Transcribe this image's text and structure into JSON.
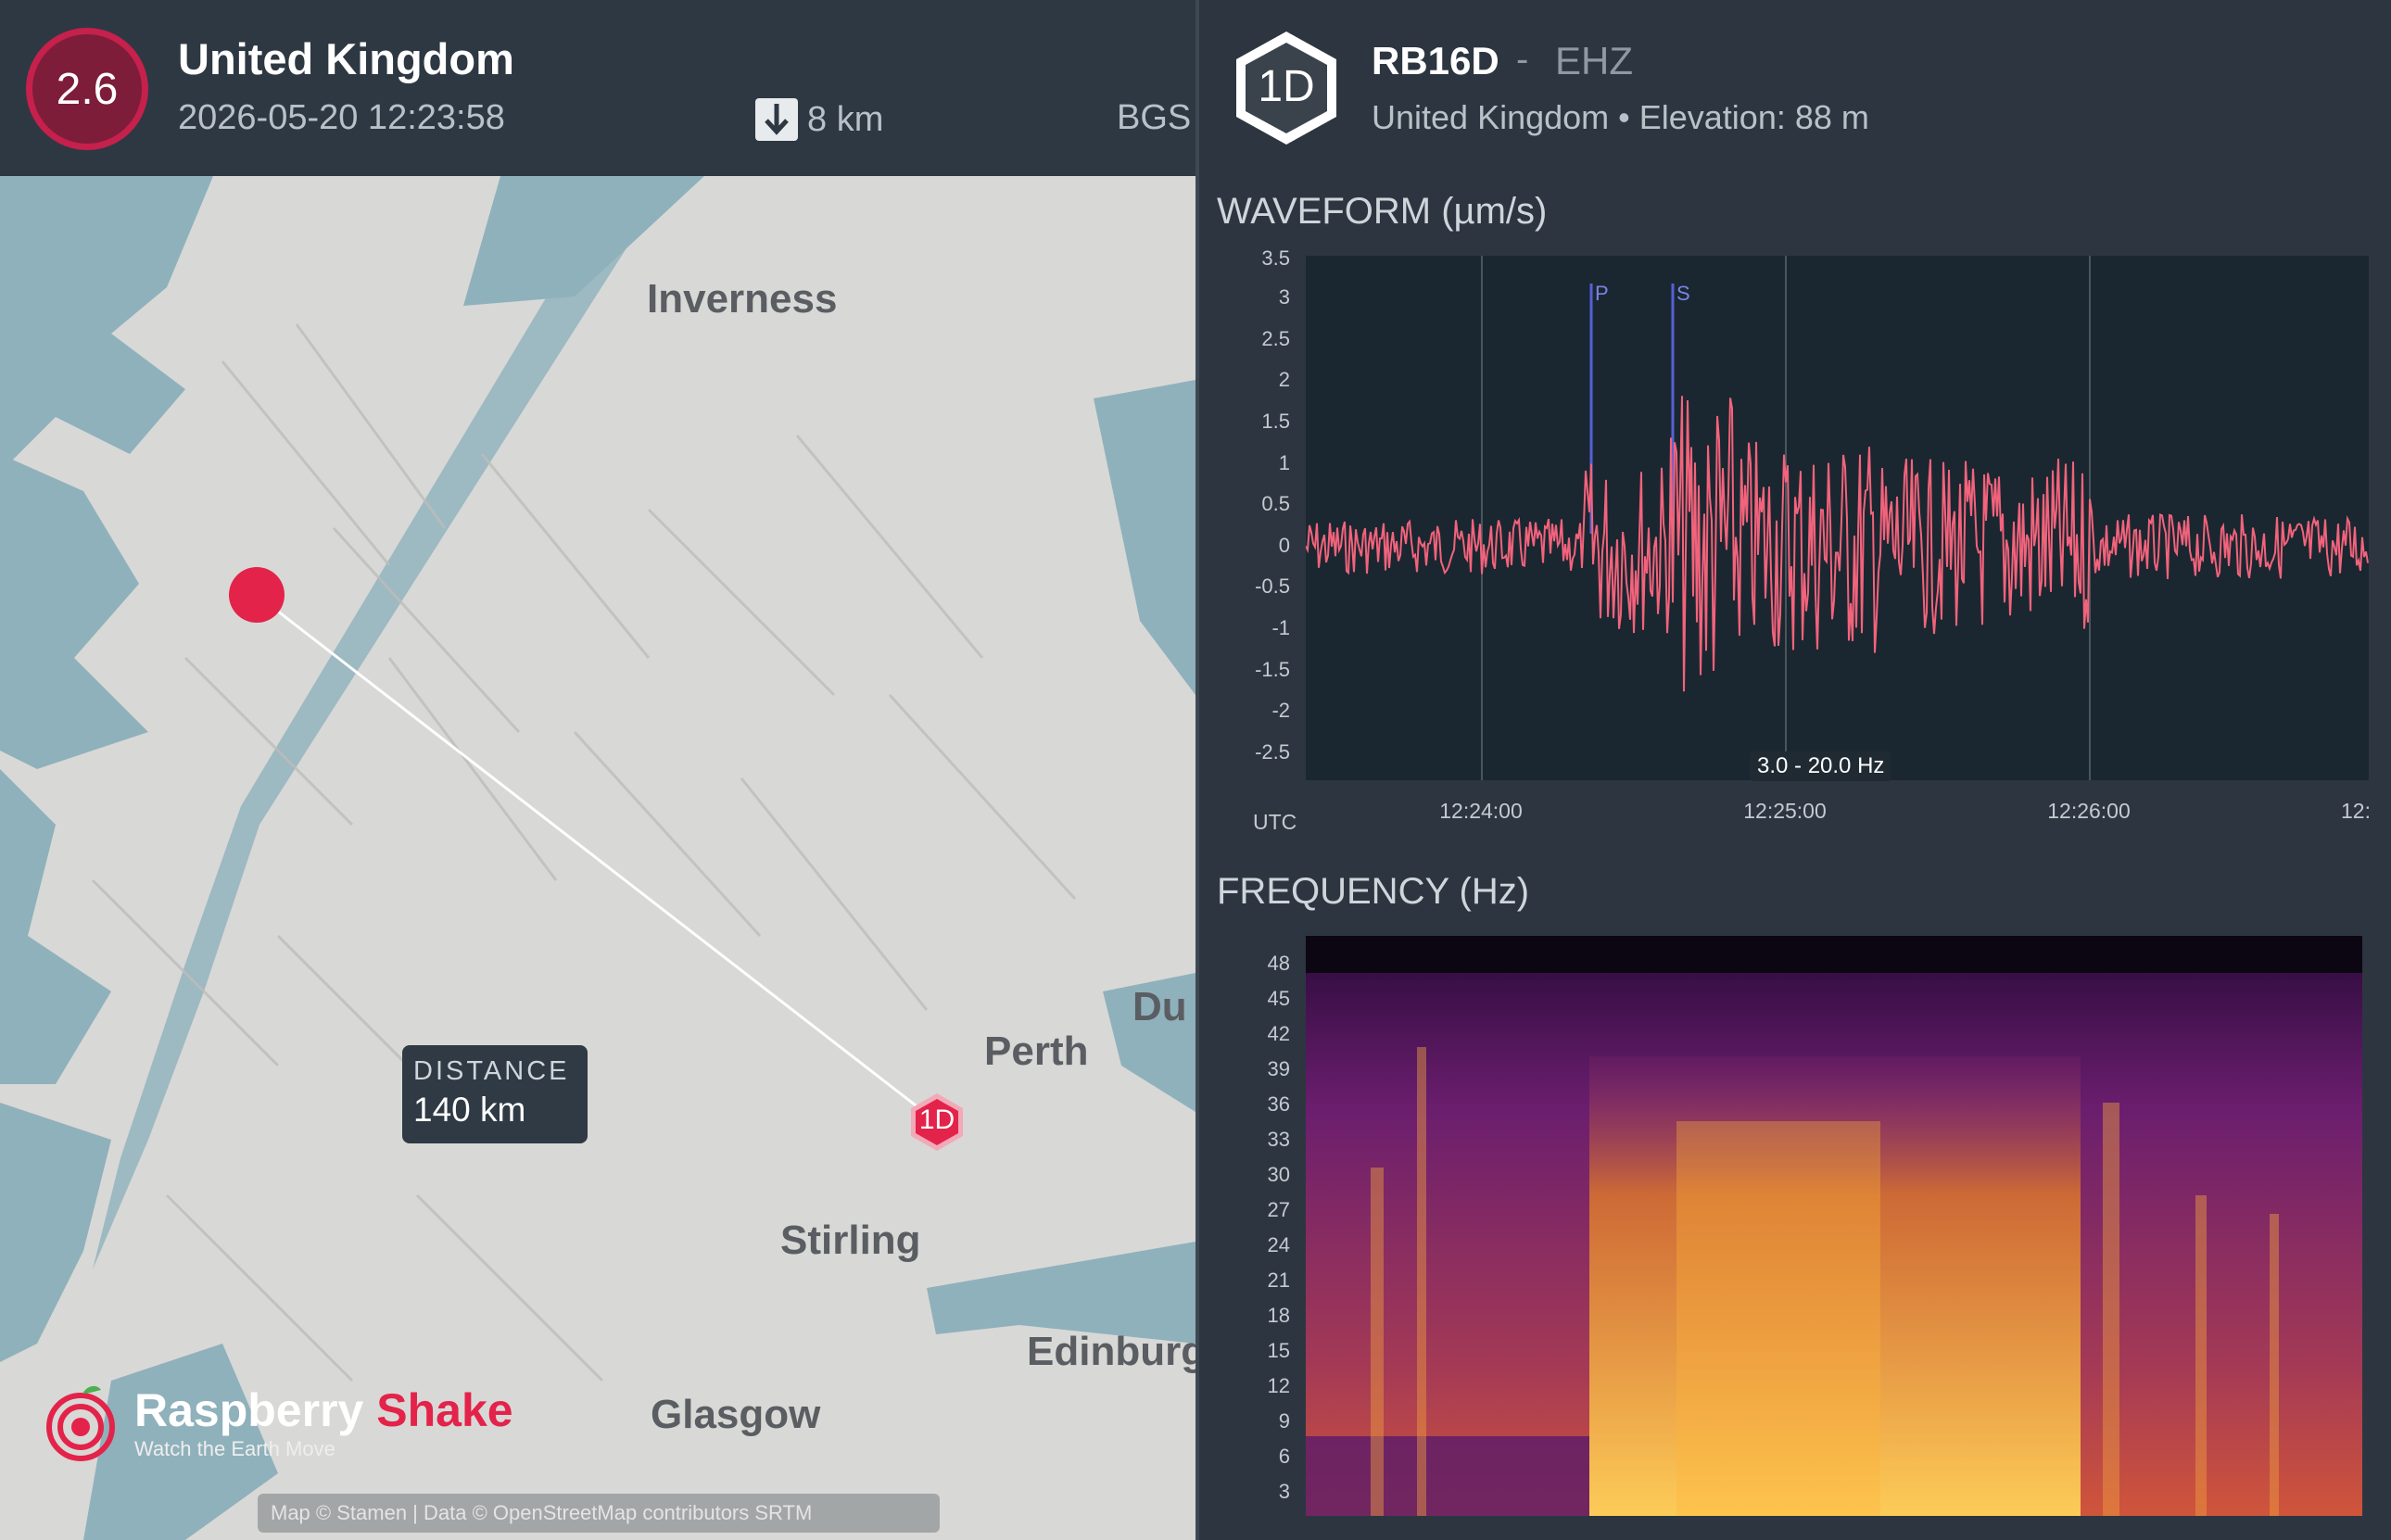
{
  "event": {
    "magnitude": "2.6",
    "region": "United Kingdom",
    "datetime": "2026-05-20 12:23:58",
    "depth": "8 km",
    "agency": "BGS"
  },
  "map": {
    "places": {
      "inverness": "Inverness",
      "perth": "Perth",
      "dundee_partial": "Du",
      "stirling": "Stirling",
      "edinburgh_partial": "Edinburg",
      "glasgow": "Glasgow"
    },
    "station_marker": "1D",
    "distance_label": "DISTANCE",
    "distance_value": "140 km",
    "brand_raspberry": "Raspberry",
    "brand_shake": "Shake",
    "brand_tagline": "Watch the Earth Move",
    "attribution": "Map © Stamen | Data © OpenStreetMap contributors SRTM"
  },
  "station": {
    "badge": "1D",
    "code": "RB16D",
    "separator": "-",
    "channel": "EHZ",
    "meta": "United Kingdom • Elevation: 88 m"
  },
  "waveform": {
    "title": "WAVEFORM (µm/s)",
    "utc_label": "UTC",
    "filter": "3.0 - 20.0 Hz",
    "y_ticks": [
      "3.5",
      "3",
      "2.5",
      "2",
      "1.5",
      "1",
      "0.5",
      "0",
      "-0.5",
      "-1",
      "-1.5",
      "-2",
      "-2.5"
    ],
    "x_ticks": [
      "12:24:00",
      "12:25:00",
      "12:26:00",
      "12:"
    ],
    "phase_p": "P",
    "phase_s": "S"
  },
  "frequency": {
    "title": "FREQUENCY (Hz)",
    "y_ticks": [
      "48",
      "45",
      "42",
      "39",
      "36",
      "33",
      "30",
      "27",
      "24",
      "21",
      "18",
      "15",
      "12",
      "9",
      "6",
      "3"
    ]
  },
  "colors": {
    "accent": "#e3234a",
    "waveform": "#f2637c",
    "panel": "#2e3842",
    "plot_bg": "#1a2730"
  }
}
